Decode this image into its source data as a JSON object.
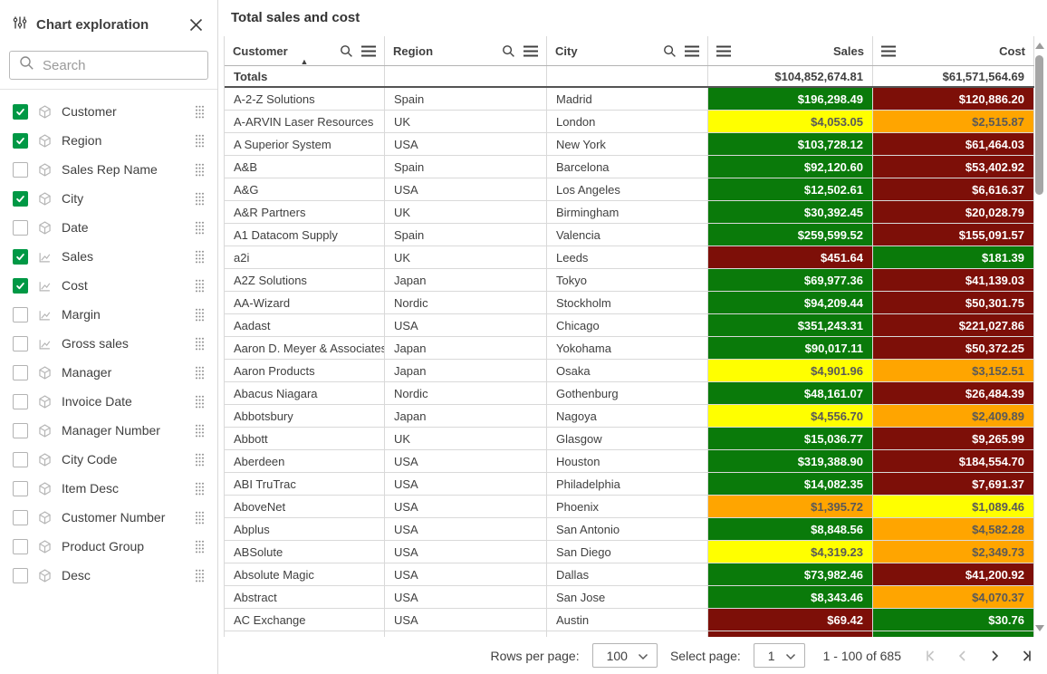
{
  "sidebar": {
    "title": "Chart exploration",
    "search_placeholder": "Search",
    "fields": [
      {
        "label": "Customer",
        "checked": true,
        "type": "dimension"
      },
      {
        "label": "Region",
        "checked": true,
        "type": "dimension"
      },
      {
        "label": "Sales Rep Name",
        "checked": false,
        "type": "dimension"
      },
      {
        "label": "City",
        "checked": true,
        "type": "dimension"
      },
      {
        "label": "Date",
        "checked": false,
        "type": "dimension"
      },
      {
        "label": "Sales",
        "checked": true,
        "type": "measure"
      },
      {
        "label": "Cost",
        "checked": true,
        "type": "measure"
      },
      {
        "label": "Margin",
        "checked": false,
        "type": "measure"
      },
      {
        "label": "Gross sales",
        "checked": false,
        "type": "measure"
      },
      {
        "label": "Manager",
        "checked": false,
        "type": "dimension"
      },
      {
        "label": "Invoice Date",
        "checked": false,
        "type": "dimension"
      },
      {
        "label": "Manager Number",
        "checked": false,
        "type": "dimension"
      },
      {
        "label": "City Code",
        "checked": false,
        "type": "dimension"
      },
      {
        "label": "Item Desc",
        "checked": false,
        "type": "dimension"
      },
      {
        "label": "Customer Number",
        "checked": false,
        "type": "dimension"
      },
      {
        "label": "Product Group",
        "checked": false,
        "type": "dimension"
      },
      {
        "label": "Desc",
        "checked": false,
        "type": "dimension"
      }
    ]
  },
  "table": {
    "title": "Total sales and cost",
    "columns": [
      {
        "label": "Customer",
        "align": "left",
        "sorted": "asc",
        "icons": [
          "search",
          "menu"
        ]
      },
      {
        "label": "Region",
        "align": "left",
        "icons": [
          "search",
          "menu"
        ]
      },
      {
        "label": "City",
        "align": "left",
        "icons": [
          "search",
          "menu"
        ]
      },
      {
        "label": "Sales",
        "align": "right",
        "icons": [
          "menu"
        ]
      },
      {
        "label": "Cost",
        "align": "right",
        "icons": [
          "menu"
        ]
      }
    ],
    "totals": {
      "label": "Totals",
      "sales": "$104,852,674.81",
      "cost": "$61,571,564.69"
    },
    "rows": [
      {
        "customer": "A-2-Z Solutions",
        "region": "Spain",
        "city": "Madrid",
        "sales": "$196,298.49",
        "cost": "$120,886.20",
        "sales_color": "green",
        "cost_color": "red"
      },
      {
        "customer": "A-ARVIN Laser Resources",
        "region": "UK",
        "city": "London",
        "sales": "$4,053.05",
        "cost": "$2,515.87",
        "sales_color": "yellow",
        "cost_color": "orange"
      },
      {
        "customer": "A Superior System",
        "region": "USA",
        "city": "New York",
        "sales": "$103,728.12",
        "cost": "$61,464.03",
        "sales_color": "green",
        "cost_color": "red"
      },
      {
        "customer": "A&B",
        "region": "Spain",
        "city": "Barcelona",
        "sales": "$92,120.60",
        "cost": "$53,402.92",
        "sales_color": "green",
        "cost_color": "red"
      },
      {
        "customer": "A&G",
        "region": "USA",
        "city": "Los Angeles",
        "sales": "$12,502.61",
        "cost": "$6,616.37",
        "sales_color": "green",
        "cost_color": "red"
      },
      {
        "customer": "A&R Partners",
        "region": "UK",
        "city": "Birmingham",
        "sales": "$30,392.45",
        "cost": "$20,028.79",
        "sales_color": "green",
        "cost_color": "red"
      },
      {
        "customer": "A1 Datacom Supply",
        "region": "Spain",
        "city": "Valencia",
        "sales": "$259,599.52",
        "cost": "$155,091.57",
        "sales_color": "green",
        "cost_color": "red"
      },
      {
        "customer": "a2i",
        "region": "UK",
        "city": "Leeds",
        "sales": "$451.64",
        "cost": "$181.39",
        "sales_color": "red",
        "cost_color": "green"
      },
      {
        "customer": "A2Z Solutions",
        "region": "Japan",
        "city": "Tokyo",
        "sales": "$69,977.36",
        "cost": "$41,139.03",
        "sales_color": "green",
        "cost_color": "red"
      },
      {
        "customer": "AA-Wizard",
        "region": "Nordic",
        "city": "Stockholm",
        "sales": "$94,209.44",
        "cost": "$50,301.75",
        "sales_color": "green",
        "cost_color": "red"
      },
      {
        "customer": "Aadast",
        "region": "USA",
        "city": "Chicago",
        "sales": "$351,243.31",
        "cost": "$221,027.86",
        "sales_color": "green",
        "cost_color": "red"
      },
      {
        "customer": "Aaron D. Meyer & Associates",
        "region": "Japan",
        "city": "Yokohama",
        "sales": "$90,017.11",
        "cost": "$50,372.25",
        "sales_color": "green",
        "cost_color": "red"
      },
      {
        "customer": "Aaron Products",
        "region": "Japan",
        "city": "Osaka",
        "sales": "$4,901.96",
        "cost": "$3,152.51",
        "sales_color": "yellow",
        "cost_color": "orange"
      },
      {
        "customer": "Abacus Niagara",
        "region": "Nordic",
        "city": "Gothenburg",
        "sales": "$48,161.07",
        "cost": "$26,484.39",
        "sales_color": "green",
        "cost_color": "red"
      },
      {
        "customer": "Abbotsbury",
        "region": "Japan",
        "city": "Nagoya",
        "sales": "$4,556.70",
        "cost": "$2,409.89",
        "sales_color": "yellow",
        "cost_color": "orange"
      },
      {
        "customer": "Abbott",
        "region": "UK",
        "city": "Glasgow",
        "sales": "$15,036.77",
        "cost": "$9,265.99",
        "sales_color": "green",
        "cost_color": "red"
      },
      {
        "customer": "Aberdeen",
        "region": "USA",
        "city": "Houston",
        "sales": "$319,388.90",
        "cost": "$184,554.70",
        "sales_color": "green",
        "cost_color": "red"
      },
      {
        "customer": "ABI TruTrac",
        "region": "USA",
        "city": "Philadelphia",
        "sales": "$14,082.35",
        "cost": "$7,691.37",
        "sales_color": "green",
        "cost_color": "red"
      },
      {
        "customer": "AboveNet",
        "region": "USA",
        "city": "Phoenix",
        "sales": "$1,395.72",
        "cost": "$1,089.46",
        "sales_color": "orange",
        "cost_color": "yellow"
      },
      {
        "customer": "Abplus",
        "region": "USA",
        "city": "San Antonio",
        "sales": "$8,848.56",
        "cost": "$4,582.28",
        "sales_color": "green",
        "cost_color": "orange"
      },
      {
        "customer": "ABSolute",
        "region": "USA",
        "city": "San Diego",
        "sales": "$4,319.23",
        "cost": "$2,349.73",
        "sales_color": "yellow",
        "cost_color": "orange"
      },
      {
        "customer": "Absolute Magic",
        "region": "USA",
        "city": "Dallas",
        "sales": "$73,982.46",
        "cost": "$41,200.92",
        "sales_color": "green",
        "cost_color": "red"
      },
      {
        "customer": "Abstract",
        "region": "USA",
        "city": "San Jose",
        "sales": "$8,343.46",
        "cost": "$4,070.37",
        "sales_color": "green",
        "cost_color": "orange"
      },
      {
        "customer": "AC Exchange",
        "region": "USA",
        "city": "Austin",
        "sales": "$69.42",
        "cost": "$30.76",
        "sales_color": "red",
        "cost_color": "green"
      }
    ],
    "partial_row": {
      "customer": "",
      "region": "",
      "city": "",
      "sales": "",
      "cost": "",
      "sales_color": "red",
      "cost_color": "green"
    }
  },
  "footer": {
    "rows_per_page_label": "Rows per page:",
    "rows_per_page_value": "100",
    "select_page_label": "Select page:",
    "page_value": "1",
    "range_text": "1 - 100 of 685"
  },
  "palette": {
    "green": "#0a7a0a",
    "red": "#7d0f08",
    "yellow": "#ffff00",
    "orange": "#ffa500",
    "checkbox_green": "#009845"
  },
  "palette_text": {
    "green": "#ffffff",
    "red": "#ffffff",
    "yellow": "#595959",
    "orange": "#595959"
  },
  "icons": {
    "sidebar_header": "sliders-icon",
    "close": "close-icon",
    "search": "search-icon",
    "column_menu": "menu-icon",
    "sort": "sort-ascending-icon",
    "dimension": "dimension-cube-icon",
    "measure": "measure-icon",
    "drag": "drag-handle-icon",
    "select_chevron": "chevron-down-icon",
    "pager": [
      "first-page-icon",
      "prev-page-icon",
      "next-page-icon",
      "last-page-icon"
    ]
  }
}
